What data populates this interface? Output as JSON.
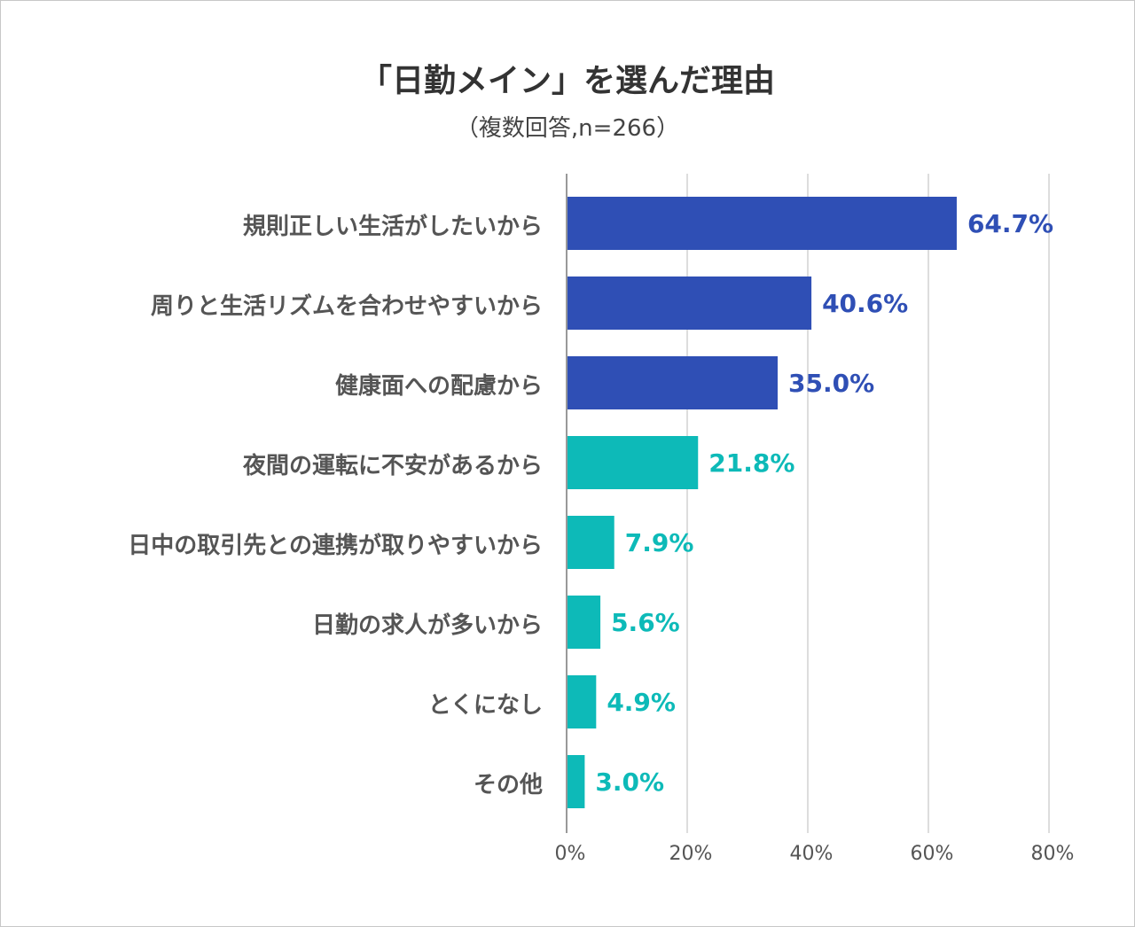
{
  "chart_data": {
    "type": "bar",
    "orientation": "horizontal",
    "title": "「日勤メイン」を選んだ理由",
    "subtitle": "（複数回答,n=266）",
    "categories": [
      "規則正しい生活がしたいから",
      "周りと生活リズムを合わせやすいから",
      "健康面への配慮から",
      "夜間の運転に不安があるから",
      "日中の取引先との連携が取りやすいから",
      "日勤の求人が多いから",
      "とくになし",
      "その他"
    ],
    "values": [
      64.7,
      40.6,
      35.0,
      21.8,
      7.9,
      5.6,
      4.9,
      3.0
    ],
    "value_labels": [
      "64.7%",
      "40.6%",
      "35.0%",
      "21.8%",
      "7.9%",
      "5.6%",
      "4.9%",
      "3.0%"
    ],
    "bar_colors": [
      "#2f4fb5",
      "#2f4fb5",
      "#2f4fb5",
      "#0dbab8",
      "#0dbab8",
      "#0dbab8",
      "#0dbab8",
      "#0dbab8"
    ],
    "xlim": [
      0,
      80
    ],
    "xticks": [
      "0%",
      "20%",
      "40%",
      "60%",
      "80%"
    ],
    "xtick_values": [
      0,
      20,
      40,
      60,
      80
    ],
    "grid": true,
    "legend": "none"
  }
}
